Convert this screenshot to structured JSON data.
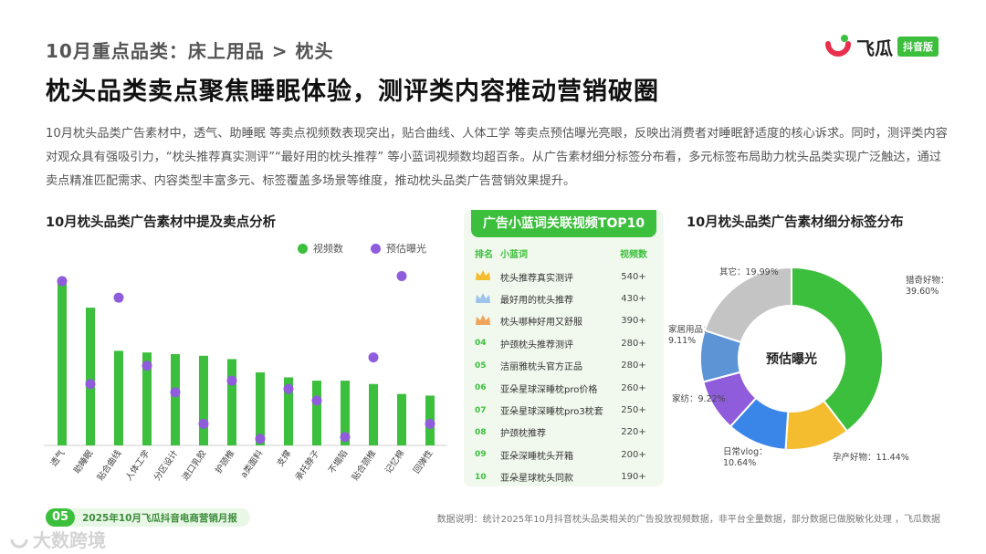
{
  "header": {
    "breadcrumb": "10月重点品类：床上用品 > 枕头",
    "title": "枕头品类卖点聚焦睡眠体验，测评类内容推动营销破圈",
    "brand_name": "飞瓜",
    "brand_badge": "抖音版"
  },
  "intro": "10月枕头品类广告素材中，透气、助睡眠 等卖点视频数表现突出，贴合曲线、人体工学 等卖点预估曝光亮眼，反映出消费者对睡眠舒适度的核心诉求。同时，测评类内容对观众具有强吸引力，“枕头推荐真实测评”“最好用的枕头推荐” 等小蓝词视频数均超百条。从广告素材细分标签分布看，多元标签布局助力枕头品类实现广泛触达，通过卖点精准匹配需求、内容类型丰富多元、标签覆盖多场景等维度，推动枕头品类广告营销效果提升。",
  "colors": {
    "green": "#3cbf3c",
    "purple": "#8f5cdc",
    "accent_dark": "#2e9e2e"
  },
  "chart_data": [
    {
      "type": "bar",
      "title": "10月枕头品类广告素材中提及卖点分析",
      "categories": [
        "透气",
        "助睡眠",
        "贴合曲线",
        "人体工学",
        "分区设计",
        "进口乳胶",
        "护颈椎",
        "a类面料",
        "支撑",
        "承托脖子",
        "不塌陷",
        "贴合颈椎",
        "记忆棉",
        "回弹性"
      ],
      "series": [
        {
          "name": "视频数",
          "type": "bar",
          "color": "#3cbf3c",
          "values": [
            100,
            83,
            57,
            56,
            55,
            54,
            52,
            44,
            41,
            39,
            39,
            37,
            31,
            30
          ]
        },
        {
          "name": "预估曝光",
          "type": "scatter",
          "color": "#8f5cdc",
          "values": [
            99,
            37,
            89,
            48,
            32,
            13,
            39,
            4,
            34,
            27,
            5,
            53,
            102,
            13
          ]
        }
      ],
      "ylim": [
        0,
        110
      ]
    },
    {
      "type": "pie",
      "title": "10月枕头品类广告素材细分标签分布",
      "center_label": "预估曝光",
      "slices": [
        {
          "label": "猎奇好物",
          "value": 39.6,
          "display": "39.60%",
          "color": "#3cbf3c"
        },
        {
          "label": "孕产好物",
          "value": 11.44,
          "display": "11.44%",
          "color": "#f4bd30"
        },
        {
          "label": "日常vlog",
          "value": 10.64,
          "display": "10.64%",
          "color": "#3a86e8"
        },
        {
          "label": "家纺",
          "value": 9.22,
          "display": "9.22%",
          "color": "#8f5cdc"
        },
        {
          "label": "家居用品",
          "value": 9.11,
          "display": "9.11%",
          "color": "#5c94d6"
        },
        {
          "label": "其它",
          "value": 19.99,
          "display": "19.99%",
          "color": "#c4c4c4"
        }
      ]
    }
  ],
  "top10": {
    "title": "广告小蓝词关联视频TOP10",
    "col_rank": "排名",
    "col_word": "小蓝词",
    "col_count": "视频数",
    "rows": [
      {
        "rank": "01",
        "word": "枕头推荐真实测评",
        "count": "540+"
      },
      {
        "rank": "02",
        "word": "最好用的枕头推荐",
        "count": "430+"
      },
      {
        "rank": "03",
        "word": "枕头哪种好用又舒服",
        "count": "390+"
      },
      {
        "rank": "04",
        "word": "护颈枕头推荐测评",
        "count": "280+"
      },
      {
        "rank": "05",
        "word": "洁丽雅枕头官方正品",
        "count": "280+"
      },
      {
        "rank": "06",
        "word": "亚朵星球深睡枕pro价格",
        "count": "260+"
      },
      {
        "rank": "07",
        "word": "亚朵星球深睡枕pro3枕套",
        "count": "250+"
      },
      {
        "rank": "08",
        "word": "护颈枕推荐",
        "count": "220+"
      },
      {
        "rank": "09",
        "word": "亚朵深睡枕头开箱",
        "count": "200+"
      },
      {
        "rank": "10",
        "word": "亚朵星球枕头同款",
        "count": "190+"
      }
    ]
  },
  "footer": {
    "page_number": "05",
    "report_name": "2025年10月飞瓜抖音电商营销月报",
    "note": "数据说明：统计2025年10月抖音枕头品类相关的广告投放视频数据，非平台全量数据，部分数据已做脱敏化处理 ，飞瓜数据",
    "watermark": "大数跨境"
  }
}
